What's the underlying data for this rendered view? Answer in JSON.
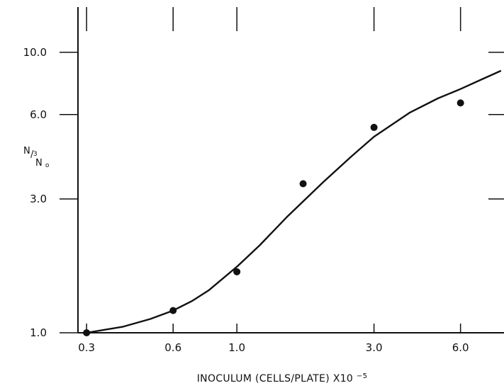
{
  "chart_data": {
    "type": "scatter",
    "xscale": "log",
    "yscale": "log",
    "xlim": [
      0.28,
      8.5
    ],
    "ylim": [
      1.0,
      14.5
    ],
    "x_ticks": [
      0.3,
      0.6,
      1.0,
      3.0,
      6.0
    ],
    "x_tick_labels": [
      "0.3",
      "0.6",
      "1.0",
      "3.0",
      "6.0"
    ],
    "x_top_ticks": [
      0.3,
      0.6,
      1.0,
      3.0,
      6.0
    ],
    "y_ticks": [
      1.0,
      3.0,
      6.0,
      10.0
    ],
    "y_tick_labels": [
      "1.0",
      "3.0",
      "6.0",
      "10.0"
    ],
    "xlabel": {
      "main": "INOCULUM (CELLS/PLATE) X10",
      "superscript": "−5"
    },
    "ylabel": {
      "numerator": "N",
      "numerator_sub": "3",
      "slash": "/",
      "denominator": "N",
      "denominator_sub": "o"
    },
    "points": {
      "x": [
        0.3,
        0.6,
        1.0,
        1.7,
        3.0,
        6.0
      ],
      "y": [
        1.0,
        1.2,
        1.65,
        3.4,
        5.4,
        6.6
      ]
    },
    "curve": {
      "x": [
        0.3,
        0.4,
        0.5,
        0.6,
        0.7,
        0.8,
        1.0,
        1.2,
        1.5,
        2.0,
        2.5,
        3.0,
        4.0,
        5.0,
        6.0,
        7.0,
        8.3
      ],
      "y": [
        1.0,
        1.05,
        1.12,
        1.2,
        1.3,
        1.42,
        1.72,
        2.05,
        2.6,
        3.45,
        4.25,
        5.0,
        6.1,
        6.85,
        7.4,
        7.95,
        8.6
      ]
    },
    "grid": false
  }
}
